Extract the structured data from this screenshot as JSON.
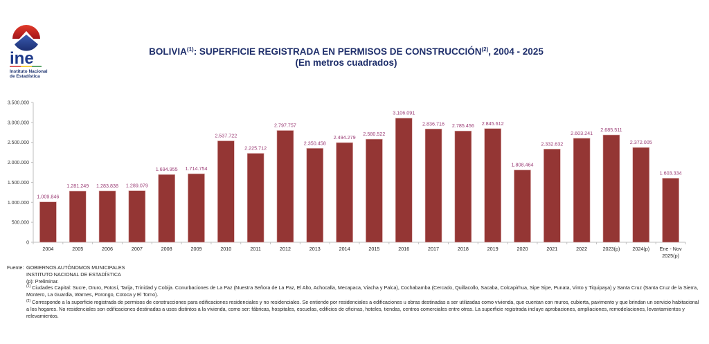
{
  "header": {
    "logo_text": "ine",
    "logo_subtitle_line1": "Instituto Nacional",
    "logo_subtitle_line2": "de Estadística",
    "title_part1": "BOLIVIA",
    "title_sup1": "(1)",
    "title_part2": ": SUPERFICIE REGISTRADA EN PERMISOS DE CONSTRUCCIÓN",
    "title_sup2": "(2)",
    "title_part3": ", 2004 - 2025",
    "subtitle": "(En metros cuadrados)"
  },
  "colors": {
    "bar": "#943634",
    "bar_edge": "#d9a6a6",
    "data_label": "#9b3d76",
    "axis": "#bfbfbf",
    "title": "#1f2f6b"
  },
  "chart_data": {
    "type": "bar",
    "title": "BOLIVIA(1): SUPERFICIE REGISTRADA EN PERMISOS DE CONSTRUCCIÓN(2), 2004 - 2025",
    "subtitle": "(En metros cuadrados)",
    "xlabel": "",
    "ylabel": "",
    "ylim": [
      0,
      3500000
    ],
    "yticks": [
      0,
      500000,
      1000000,
      1500000,
      2000000,
      2500000,
      3000000,
      3500000
    ],
    "ytick_labels": [
      "0",
      "500.000",
      "1.000.000",
      "1.500.000",
      "2.000.000",
      "2.500.000",
      "3.000.000",
      "3.500.000"
    ],
    "grid": false,
    "legend": "none",
    "categories": [
      "2004",
      "2005",
      "2006",
      "2007",
      "2008",
      "2009",
      "2010",
      "2011",
      "2012",
      "2013",
      "2014",
      "2015",
      "2016",
      "2017",
      "2018",
      "2019",
      "2020",
      "2021",
      "2022",
      "2023(p)",
      "2024(p)",
      "Ene - Nov\n2025(p)"
    ],
    "values": [
      1009846,
      1281249,
      1283838,
      1289079,
      1694955,
      1714754,
      2537722,
      2225712,
      2797757,
      2350458,
      2494279,
      2580522,
      3106091,
      2836716,
      2785456,
      2845612,
      1808464,
      2332632,
      2603241,
      2685511,
      2372005,
      1603334
    ],
    "data_labels": [
      "1.009.846",
      "1.281.249",
      "1.283.838",
      "1.289.079",
      "1.694.955",
      "1.714.754",
      "2.537.722",
      "2.225.712",
      "2.797.757",
      "2.350.458",
      "2.494.279",
      "2.580.522",
      "3.106.091",
      "2.836.716",
      "2.785.456",
      "2.845.612",
      "1.808.464",
      "2.332.632",
      "2.603.241",
      "2.685.511",
      "2.372.005",
      "1.603.334"
    ]
  },
  "notes": {
    "source_label": "Fuente:",
    "source_line1": "GOBIERNOS AUTÓNOMOS MUNICIPALES",
    "source_line2": "INSTITUTO NACIONAL DE ESTADÍSTICA",
    "preliminary": "(p): Preliminar.",
    "note1_marker": "(1)",
    "note1_text": "Ciudades Capital: Sucre, Oruro, Potosí, Tarija, Trinidad y Cobija. Conurbaciones de La Paz (Nuestra Señora de La Paz, El Alto, Achocalla, Mecapaca, Viacha y Palca), Cochabamba (Cercado, Quillacollo, Sacaba, Colcapirhua, Sipe Sipe, Punata, Vinto y Tiquipaya) y Santa Cruz (Santa Cruz de la Sierra, Montero, La Guardia, Warnes, Porongo, Cotoca y El Torno).",
    "note2_marker": "(2)",
    "note2_text": "Corresponde a la superficie registrada de permisos de construcciones para edificaciones residenciales y no residenciales. Se entiende por residenciales a  edificaciones u obras destinadas a ser utilizadas como vivienda, que cuentan con muros, cubierta, pavimento y que brindan un servicio habitacional a los hogares. No residenciales son edificaciones destinadas a usos distintos a la vivienda, como ser: fábricas, hospitales, escuelas, edificios de oficinas, hoteles, tiendas, centros comerciales entre otras. La superficie registrada incluye aprobaciones, ampliaciones, remodelaciones, levantamientos y relevamientos."
  }
}
